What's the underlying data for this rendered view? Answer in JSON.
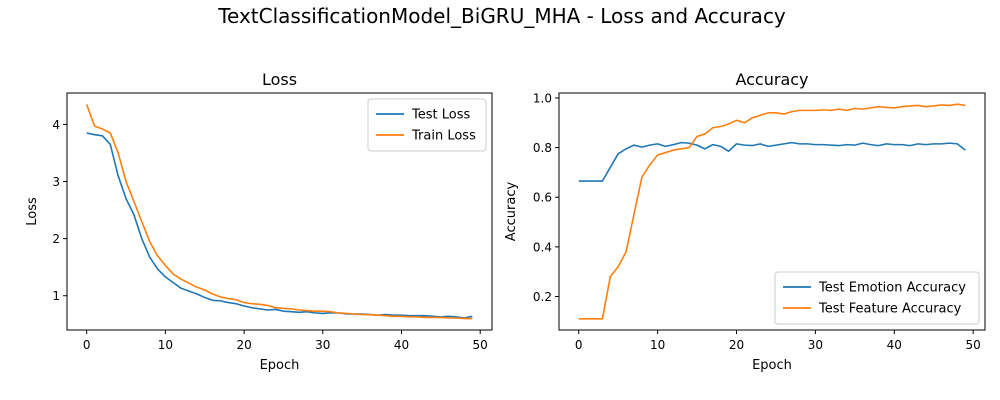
{
  "figure": {
    "title": "TextClassificationModel_BiGRU_MHA - Loss and Accuracy"
  },
  "chart_data": [
    {
      "type": "line",
      "title": "Loss",
      "xlabel": "Epoch",
      "ylabel": "Loss",
      "xlim": [
        -2.5,
        51.5
      ],
      "ylim": [
        0.4,
        4.55
      ],
      "xticks": [
        "0",
        "10",
        "20",
        "30",
        "40",
        "50"
      ],
      "yticks": [
        "1",
        "2",
        "3",
        "4"
      ],
      "legend": "upper-right",
      "grid": false,
      "series": [
        {
          "name": "Test Loss",
          "color": "#1f77b4",
          "x": [
            0,
            1,
            2,
            3,
            4,
            5,
            6,
            7,
            8,
            9,
            10,
            11,
            12,
            13,
            14,
            15,
            16,
            17,
            18,
            19,
            20,
            21,
            22,
            23,
            24,
            25,
            26,
            27,
            28,
            29,
            30,
            31,
            32,
            33,
            34,
            35,
            36,
            37,
            38,
            39,
            40,
            41,
            42,
            43,
            44,
            45,
            46,
            47,
            48,
            49
          ],
          "values": [
            3.85,
            3.82,
            3.8,
            3.65,
            3.1,
            2.7,
            2.42,
            2.0,
            1.68,
            1.47,
            1.33,
            1.23,
            1.13,
            1.08,
            1.03,
            0.97,
            0.92,
            0.91,
            0.88,
            0.86,
            0.82,
            0.79,
            0.77,
            0.75,
            0.76,
            0.73,
            0.72,
            0.71,
            0.72,
            0.7,
            0.69,
            0.7,
            0.7,
            0.68,
            0.68,
            0.68,
            0.67,
            0.66,
            0.67,
            0.66,
            0.66,
            0.65,
            0.65,
            0.65,
            0.64,
            0.63,
            0.64,
            0.63,
            0.61,
            0.64
          ]
        },
        {
          "name": "Train Loss",
          "color": "#ff7f0e",
          "x": [
            0,
            1,
            2,
            3,
            4,
            5,
            6,
            7,
            8,
            9,
            10,
            11,
            12,
            13,
            14,
            15,
            16,
            17,
            18,
            19,
            20,
            21,
            22,
            23,
            24,
            25,
            26,
            27,
            28,
            29,
            30,
            31,
            32,
            33,
            34,
            35,
            36,
            37,
            38,
            39,
            40,
            41,
            42,
            43,
            44,
            45,
            46,
            47,
            48,
            49
          ],
          "values": [
            4.35,
            3.97,
            3.92,
            3.85,
            3.5,
            3.0,
            2.65,
            2.3,
            1.95,
            1.7,
            1.53,
            1.38,
            1.29,
            1.22,
            1.15,
            1.1,
            1.03,
            0.98,
            0.95,
            0.93,
            0.88,
            0.86,
            0.85,
            0.83,
            0.79,
            0.78,
            0.77,
            0.75,
            0.74,
            0.73,
            0.73,
            0.72,
            0.7,
            0.69,
            0.68,
            0.67,
            0.67,
            0.66,
            0.65,
            0.64,
            0.64,
            0.63,
            0.63,
            0.62,
            0.62,
            0.62,
            0.61,
            0.61,
            0.6,
            0.6
          ]
        }
      ]
    },
    {
      "type": "line",
      "title": "Accuracy",
      "xlabel": "Epoch",
      "ylabel": "Accuracy",
      "xlim": [
        -2.5,
        51.5
      ],
      "ylim": [
        0.065,
        1.02
      ],
      "xticks": [
        "0",
        "10",
        "20",
        "30",
        "40",
        "50"
      ],
      "yticks": [
        "0.2",
        "0.4",
        "0.6",
        "0.8",
        "1.0"
      ],
      "legend": "lower-right",
      "grid": false,
      "series": [
        {
          "name": "Test Emotion Accuracy",
          "color": "#1f77b4",
          "x": [
            0,
            1,
            2,
            3,
            4,
            5,
            6,
            7,
            8,
            9,
            10,
            11,
            12,
            13,
            14,
            15,
            16,
            17,
            18,
            19,
            20,
            21,
            22,
            23,
            24,
            25,
            26,
            27,
            28,
            29,
            30,
            31,
            32,
            33,
            34,
            35,
            36,
            37,
            38,
            39,
            40,
            41,
            42,
            43,
            44,
            45,
            46,
            47,
            48,
            49
          ],
          "values": [
            0.665,
            0.665,
            0.665,
            0.665,
            0.72,
            0.775,
            0.795,
            0.81,
            0.802,
            0.81,
            0.815,
            0.805,
            0.812,
            0.82,
            0.818,
            0.81,
            0.795,
            0.812,
            0.805,
            0.785,
            0.815,
            0.81,
            0.808,
            0.815,
            0.805,
            0.81,
            0.815,
            0.82,
            0.815,
            0.815,
            0.812,
            0.812,
            0.81,
            0.808,
            0.812,
            0.81,
            0.818,
            0.812,
            0.808,
            0.815,
            0.812,
            0.812,
            0.808,
            0.815,
            0.812,
            0.815,
            0.815,
            0.818,
            0.815,
            0.79
          ]
        },
        {
          "name": "Test Feature Accuracy",
          "color": "#ff7f0e",
          "x": [
            0,
            1,
            2,
            3,
            4,
            5,
            6,
            7,
            8,
            9,
            10,
            11,
            12,
            13,
            14,
            15,
            16,
            17,
            18,
            19,
            20,
            21,
            22,
            23,
            24,
            25,
            26,
            27,
            28,
            29,
            30,
            31,
            32,
            33,
            34,
            35,
            36,
            37,
            38,
            39,
            40,
            41,
            42,
            43,
            44,
            45,
            46,
            47,
            48,
            49
          ],
          "values": [
            0.11,
            0.11,
            0.11,
            0.11,
            0.28,
            0.32,
            0.38,
            0.53,
            0.68,
            0.73,
            0.77,
            0.78,
            0.79,
            0.795,
            0.8,
            0.845,
            0.855,
            0.88,
            0.885,
            0.895,
            0.91,
            0.9,
            0.92,
            0.93,
            0.94,
            0.94,
            0.935,
            0.945,
            0.95,
            0.95,
            0.95,
            0.952,
            0.95,
            0.955,
            0.95,
            0.958,
            0.955,
            0.96,
            0.965,
            0.962,
            0.96,
            0.965,
            0.968,
            0.97,
            0.965,
            0.968,
            0.972,
            0.97,
            0.975,
            0.97
          ]
        }
      ]
    }
  ]
}
